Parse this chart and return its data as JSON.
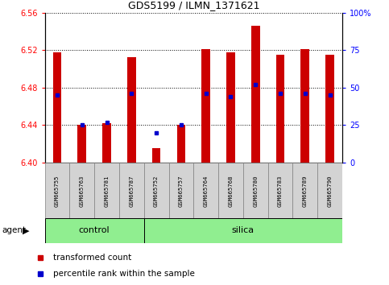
{
  "title": "GDS5199 / ILMN_1371621",
  "samples": [
    "GSM665755",
    "GSM665763",
    "GSM665781",
    "GSM665787",
    "GSM665752",
    "GSM665757",
    "GSM665764",
    "GSM665768",
    "GSM665780",
    "GSM665783",
    "GSM665789",
    "GSM665790"
  ],
  "transformed_counts": [
    6.518,
    6.44,
    6.442,
    6.513,
    6.415,
    6.44,
    6.521,
    6.518,
    6.546,
    6.515,
    6.521,
    6.515
  ],
  "percentile_ranks": [
    45,
    25,
    27,
    46,
    20,
    25,
    46,
    44,
    52,
    46,
    46,
    45
  ],
  "ylim_left": [
    6.4,
    6.56
  ],
  "ylim_right": [
    0,
    100
  ],
  "yticks_left": [
    6.4,
    6.44,
    6.48,
    6.52,
    6.56
  ],
  "yticks_right": [
    0,
    25,
    50,
    75,
    100
  ],
  "ytick_labels_right": [
    "0",
    "25",
    "50",
    "75",
    "100%"
  ],
  "control_count": 4,
  "silica_count": 8,
  "bar_color": "#CC0000",
  "dot_color": "#0000CC",
  "bar_width": 0.35,
  "group_bg": "#90EE90",
  "tick_bg": "#D3D3D3",
  "agent_label": "agent",
  "control_label": "control",
  "silica_label": "silica",
  "legend_bar_label": "transformed count",
  "legend_dot_label": "percentile rank within the sample",
  "base_value": 6.4
}
